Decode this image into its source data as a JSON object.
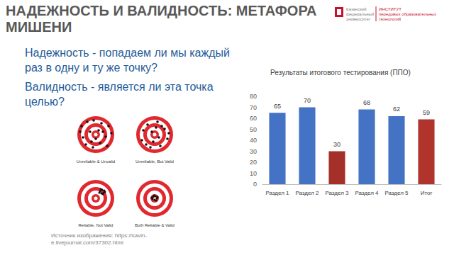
{
  "slide": {
    "title": [
      "НАДЕЖНОСТЬ И ВАЛИДНОСТЬ: МЕТАФОРА",
      "МИШЕНИ"
    ],
    "logo": {
      "left": [
        "Казанский",
        "федеральный",
        "университет"
      ],
      "right": [
        "ИНСТИТУТ",
        "передовых образовательных",
        "технологий"
      ]
    },
    "bullets": [
      "Надежность - попадаем ли мы каждый раз в одну и ту же точку?",
      "Валидность - является ли эта точка целью?"
    ],
    "targets": [
      "Unreliable & Unvalid",
      "Unreliable, But Valid",
      "Reliable, Not Valid",
      "Both Reliable & Valid"
    ],
    "source": "Источник изображения: https://savin-e.livejournal.com/37302.html"
  },
  "chart_data": {
    "type": "bar",
    "title": "Результаты итогового тестирования (ППО)",
    "categories": [
      "Раздел 1",
      "Раздел 2",
      "Раздел 3",
      "Раздел 4",
      "Раздел 5",
      "Итог"
    ],
    "values": [
      65,
      70,
      30,
      68,
      62,
      59
    ],
    "colors": [
      "#4472c4",
      "#4472c4",
      "#a5302a",
      "#4472c4",
      "#4472c4",
      "#b0342c"
    ],
    "ylim": [
      0,
      80
    ],
    "yticks": [
      0,
      10,
      20,
      30,
      40,
      50,
      60,
      70,
      80
    ],
    "grid": false,
    "data_labels": true
  }
}
